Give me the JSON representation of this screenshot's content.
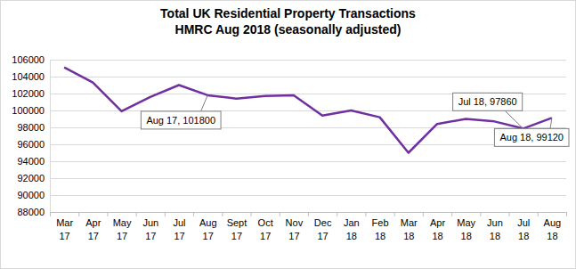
{
  "chart_data": {
    "type": "line",
    "title": "Total UK Residential Property Transactions",
    "subtitle": "HMRC Aug 2018 (seasonally adjusted)",
    "categories": [
      "Mar 17",
      "Apr 17",
      "May 17",
      "Jun 17",
      "Jul 17",
      "Aug 17",
      "Sept 17",
      "Oct 17",
      "Nov 17",
      "Dec 17",
      "Jan 18",
      "Feb 18",
      "Mar 18",
      "Apr 18",
      "May 18",
      "Jun 18",
      "Jul 18",
      "Aug 18"
    ],
    "values": [
      105100,
      103300,
      99900,
      101600,
      103000,
      101800,
      101400,
      101700,
      101800,
      99400,
      100000,
      99200,
      95000,
      98400,
      99000,
      98700,
      97860,
      99120
    ],
    "color": "#70309f",
    "ylim": [
      88000,
      106000
    ],
    "yticks": [
      88000,
      90000,
      92000,
      94000,
      96000,
      98000,
      100000,
      102000,
      104000,
      106000
    ],
    "grid": true,
    "annotations": [
      {
        "text": "Aug 17, 101800",
        "x": "Aug 17",
        "y": 101800
      },
      {
        "text": "Jul 18, 97860",
        "x": "Jul 18",
        "y": 97860
      },
      {
        "text": "Aug 18, 99120",
        "x": "Aug 18",
        "y": 99120
      }
    ]
  }
}
